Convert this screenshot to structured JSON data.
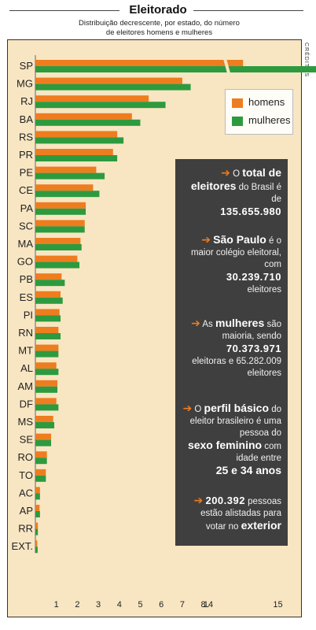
{
  "title": "Eleitorado",
  "subtitle": "Distribuição decrescente, por estado, do número de eleitores homens e mulheres",
  "credits": "CRÉDITOS",
  "legend": {
    "homens": "homens",
    "mulheres": "mulheres"
  },
  "colors": {
    "homens": "#ee7d1f",
    "mulheres": "#2e9a3f",
    "panel": "#f8e6c3",
    "info_box": "#3f3f3f"
  },
  "info": {
    "b1": {
      "p1": "O ",
      "h1": "total de eleitores",
      "p2": " do Brasil é de ",
      "n1": "135.655.980"
    },
    "b2": {
      "h1": "São Paulo",
      "p1": " é o maior colégio eleitoral, com ",
      "n1": "30.239.710",
      "p2": " eleitores"
    },
    "b3": {
      "p1": "As ",
      "h1": "mulheres",
      "p2": " são maioria, sendo ",
      "n1": "70.373.971",
      "p3": " eleitoras e 65.282.009 eleitores"
    },
    "b4": {
      "p1": "O ",
      "h1": "perfil básico",
      "p2": " do eleitor brasileiro é uma pessoa do ",
      "h2": "sexo feminino",
      "p3": " com idade entre ",
      "h3": "25 e 34 anos"
    },
    "b5": {
      "n1": "200.392",
      "p1": " pessoas estão alistadas para votar no ",
      "h1": "exterior"
    }
  },
  "chart_data": {
    "type": "bar",
    "orientation": "horizontal",
    "unit": "milhões de eleitores",
    "categories": [
      "SP",
      "MG",
      "RJ",
      "BA",
      "RS",
      "PR",
      "PE",
      "CE",
      "PA",
      "SC",
      "MA",
      "GO",
      "PB",
      "ES",
      "PI",
      "RN",
      "MT",
      "AL",
      "AM",
      "DF",
      "MS",
      "SE",
      "RO",
      "TO",
      "AC",
      "AP",
      "RR",
      "EXT."
    ],
    "series": [
      {
        "name": "homens",
        "values": [
          14.5,
          7.0,
          5.4,
          4.6,
          3.9,
          3.7,
          2.9,
          2.75,
          2.4,
          2.35,
          2.15,
          2.0,
          1.25,
          1.2,
          1.15,
          1.1,
          1.1,
          1.0,
          1.05,
          1.0,
          0.85,
          0.75,
          0.55,
          0.5,
          0.22,
          0.2,
          0.12,
          0.09
        ]
      },
      {
        "name": "mulheres",
        "values": [
          15.6,
          7.4,
          6.2,
          5.0,
          4.2,
          3.9,
          3.3,
          3.05,
          2.4,
          2.35,
          2.2,
          2.1,
          1.4,
          1.3,
          1.2,
          1.2,
          1.1,
          1.1,
          1.05,
          1.1,
          0.9,
          0.75,
          0.55,
          0.5,
          0.22,
          0.22,
          0.12,
          0.11
        ]
      }
    ],
    "x_ticks": [
      "1",
      "2",
      "3",
      "4",
      "5",
      "6",
      "7",
      "8",
      "...",
      "14",
      "15"
    ],
    "x_break": {
      "from": 8,
      "to": 13
    },
    "xlim": [
      0,
      15.8
    ],
    "grid": false,
    "legend_position": "top-right"
  }
}
